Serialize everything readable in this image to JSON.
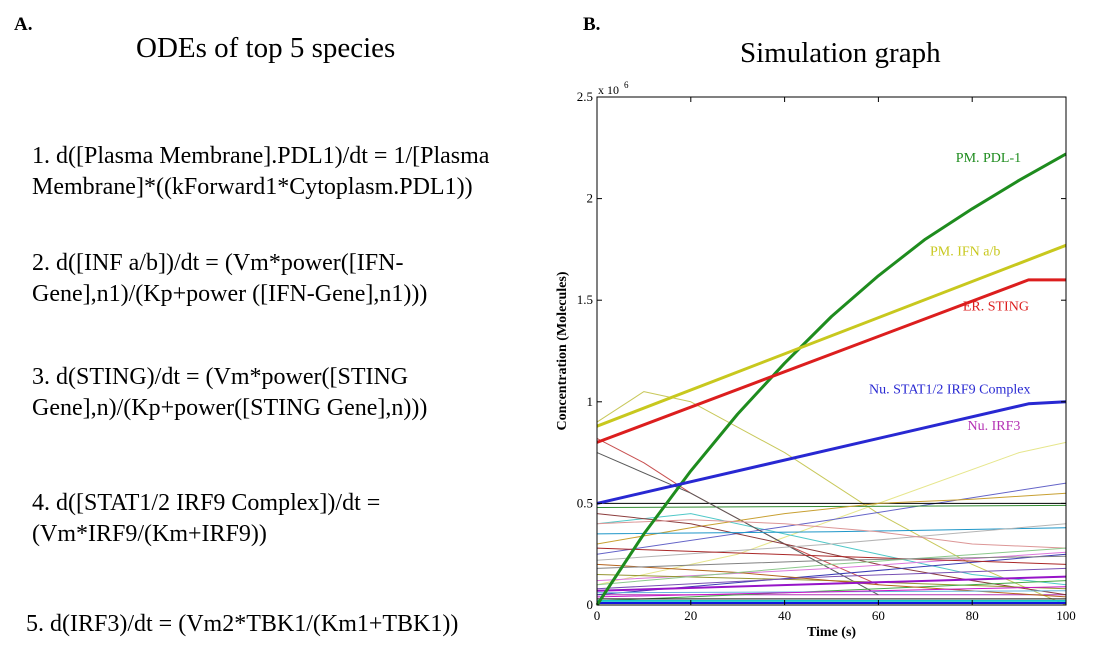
{
  "panel_a": {
    "label": "A.",
    "title": "ODEs of top 5 species",
    "equations": [
      [
        "1. d([Plasma Membrane].PDL1)/dt = 1/[Plasma",
        "Membrane]*((kForward1*Cytoplasm.PDL1))"
      ],
      [
        "2. d([INF a/b])/dt = (Vm*power([IFN-",
        "Gene],n1)/(Kp+power ([IFN-Gene],n1)))"
      ],
      [
        "3. d(STING)/dt = (Vm*power([STING",
        "Gene],n)/(Kp+power([STING Gene],n)))"
      ],
      [
        "4. d([STAT1/2 IRF9 Complex])/dt =",
        "(Vm*IRF9/(Km+IRF9))"
      ],
      [
        "5. d(IRF3)/dt = (Vm2*TBK1/(Km1+TBK1))"
      ]
    ]
  },
  "panel_b": {
    "label": "B.",
    "title": "Simulation graph"
  },
  "chart_data": {
    "type": "line",
    "xlabel": "Time (s)",
    "ylabel": "Concentration (Molecules)",
    "y_multiplier": "x 10",
    "y_exponent": "6",
    "xlim": [
      0,
      100
    ],
    "ylim": [
      0,
      2.5
    ],
    "xticks": [
      "0",
      "20",
      "40",
      "60",
      "80",
      "100"
    ],
    "yticks": [
      "0",
      "0.5",
      "1",
      "1.5",
      "2",
      "2.5"
    ],
    "grid": false,
    "series": [
      {
        "name": "PM. PDL-1",
        "color": "#1e8c1e",
        "width": 3,
        "x": [
          0,
          10,
          20,
          30,
          40,
          50,
          60,
          70,
          80,
          90,
          100
        ],
        "y": [
          0,
          0.35,
          0.66,
          0.94,
          1.19,
          1.42,
          1.62,
          1.8,
          1.95,
          2.09,
          2.22
        ]
      },
      {
        "name": "PM. IFN a/b",
        "color": "#c8c81e",
        "width": 3,
        "x": [
          0,
          100
        ],
        "y": [
          0.88,
          1.77
        ]
      },
      {
        "name": "ER. STING",
        "color": "#dc1e1e",
        "width": 3,
        "x": [
          0,
          92,
          100
        ],
        "y": [
          0.8,
          1.6,
          1.6
        ]
      },
      {
        "name": "Nu. STAT1/2 IRF9 Complex",
        "color": "#2828d2",
        "width": 3,
        "x": [
          0,
          92,
          100
        ],
        "y": [
          0.5,
          0.99,
          1.0
        ]
      },
      {
        "name": "Nu. IRF3",
        "color": "#b432b4",
        "width": 1,
        "x": [
          0,
          100
        ],
        "y": [
          0.05,
          0.05
        ]
      },
      {
        "color": "#c8c85a",
        "width": 1,
        "x": [
          0,
          10,
          20,
          40,
          60,
          80,
          100
        ],
        "y": [
          0.9,
          1.05,
          1.0,
          0.75,
          0.45,
          0.2,
          0.0
        ]
      },
      {
        "color": "#e6e68c",
        "width": 1,
        "x": [
          0,
          30,
          60,
          90,
          100
        ],
        "y": [
          0.1,
          0.25,
          0.5,
          0.75,
          0.8
        ]
      },
      {
        "color": "#c85050",
        "width": 1,
        "x": [
          0,
          10,
          20,
          40,
          60
        ],
        "y": [
          0.82,
          0.7,
          0.55,
          0.3,
          0.1
        ]
      },
      {
        "color": "#50c8c8",
        "width": 1,
        "x": [
          0,
          20,
          40,
          60,
          80,
          100
        ],
        "y": [
          0.4,
          0.45,
          0.35,
          0.25,
          0.15,
          0.1
        ]
      },
      {
        "color": "#6464c8",
        "width": 1,
        "x": [
          0,
          50,
          100
        ],
        "y": [
          0.25,
          0.42,
          0.6
        ]
      },
      {
        "color": "#000000",
        "width": 1,
        "x": [
          0,
          100
        ],
        "y": [
          0.5,
          0.5
        ]
      },
      {
        "color": "#328c32",
        "width": 1,
        "x": [
          0,
          100
        ],
        "y": [
          0.48,
          0.49
        ]
      },
      {
        "color": "#5a5a5a",
        "width": 1,
        "x": [
          0,
          20,
          40,
          60
        ],
        "y": [
          0.75,
          0.55,
          0.3,
          0.05
        ]
      },
      {
        "color": "#c8a032",
        "width": 1,
        "x": [
          0,
          20,
          40,
          60,
          80,
          100
        ],
        "y": [
          0.3,
          0.38,
          0.45,
          0.5,
          0.52,
          0.55
        ]
      },
      {
        "color": "#8c3c3c",
        "width": 1,
        "x": [
          0,
          20,
          40,
          60,
          80,
          100
        ],
        "y": [
          0.45,
          0.4,
          0.3,
          0.2,
          0.12,
          0.05
        ]
      },
      {
        "color": "#1e96c8",
        "width": 1,
        "x": [
          0,
          50,
          100
        ],
        "y": [
          0.35,
          0.36,
          0.38
        ]
      },
      {
        "color": "#b4b4b4",
        "width": 1,
        "x": [
          0,
          50,
          100
        ],
        "y": [
          0.22,
          0.3,
          0.4
        ]
      },
      {
        "color": "#dc78dc",
        "width": 1,
        "x": [
          0,
          50,
          100
        ],
        "y": [
          0.12,
          0.18,
          0.26
        ]
      },
      {
        "color": "#3c3cb4",
        "width": 1,
        "x": [
          0,
          100
        ],
        "y": [
          0.05,
          0.25
        ]
      },
      {
        "color": "#969632",
        "width": 1,
        "x": [
          0,
          50,
          100
        ],
        "y": [
          0.15,
          0.12,
          0.08
        ]
      },
      {
        "color": "#dc9696",
        "width": 1,
        "x": [
          0,
          20,
          40,
          60,
          80,
          100
        ],
        "y": [
          0.4,
          0.42,
          0.4,
          0.36,
          0.3,
          0.28
        ]
      },
      {
        "color": "#46aa46",
        "width": 1,
        "x": [
          0,
          100
        ],
        "y": [
          0.02,
          0.12
        ]
      },
      {
        "color": "#7850b4",
        "width": 1,
        "x": [
          0,
          50,
          100
        ],
        "y": [
          0.08,
          0.14,
          0.18
        ]
      },
      {
        "color": "#1e1e1e",
        "width": 1,
        "x": [
          0,
          100
        ],
        "y": [
          0.03,
          0.03
        ]
      },
      {
        "color": "#b4641e",
        "width": 1,
        "x": [
          0,
          30,
          60,
          100
        ],
        "y": [
          0.2,
          0.16,
          0.1,
          0.04
        ]
      },
      {
        "color": "#64b4dc",
        "width": 1,
        "x": [
          0,
          100
        ],
        "y": [
          0.06,
          0.07
        ]
      },
      {
        "color": "#aa2828",
        "width": 1,
        "x": [
          0,
          50,
          100
        ],
        "y": [
          0.28,
          0.24,
          0.2
        ]
      },
      {
        "color": "#8cc88c",
        "width": 1,
        "x": [
          0,
          50,
          100
        ],
        "y": [
          0.1,
          0.2,
          0.28
        ]
      },
      {
        "color": "#828282",
        "width": 1,
        "x": [
          0,
          50,
          100
        ],
        "y": [
          0.18,
          0.22,
          0.24
        ]
      },
      {
        "color": "#9614c8",
        "width": 2,
        "x": [
          0,
          100
        ],
        "y": [
          0.07,
          0.14
        ]
      },
      {
        "color": "#1414dc",
        "width": 2,
        "x": [
          0,
          100
        ],
        "y": [
          0.01,
          0.01
        ]
      },
      {
        "color": "#14c8c8",
        "width": 2,
        "x": [
          0,
          100
        ],
        "y": [
          0.02,
          0.02
        ]
      },
      {
        "color": "#c814c8",
        "width": 1,
        "x": [
          0,
          100
        ],
        "y": [
          0.04,
          0.09
        ]
      }
    ],
    "annotations": [
      {
        "text": "PM. PDL-1",
        "x": 76.5,
        "y": 2.18,
        "color": "#1e8c1e"
      },
      {
        "text": "PM. IFN a/b",
        "x": 71,
        "y": 1.72,
        "color": "#c8c81e"
      },
      {
        "text": "ER. STING",
        "x": 78,
        "y": 1.45,
        "color": "#dc1e1e"
      },
      {
        "text": "Nu. STAT1/2 IRF9 Complex",
        "x": 58,
        "y": 1.04,
        "color": "#2828d2"
      },
      {
        "text": "Nu. IRF3",
        "x": 79,
        "y": 0.86,
        "color": "#b432b4"
      }
    ]
  }
}
